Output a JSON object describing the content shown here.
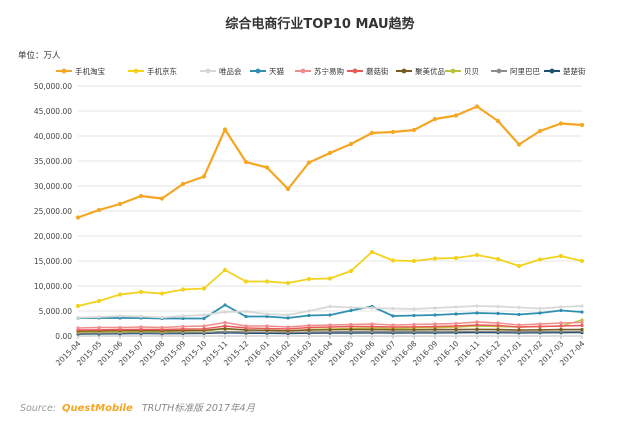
{
  "chart_data": {
    "type": "line",
    "title": "综合电商行业TOP10 MAU趋势",
    "unit_label": "单位：万人",
    "ylim": [
      0,
      50000
    ],
    "y_ticks": [
      "0.00",
      "5,000.00",
      "10,000.00",
      "15,000.00",
      "20,000.00",
      "25,000.00",
      "30,000.00",
      "35,000.00",
      "40,000.00",
      "45,000.00",
      "50,000.00"
    ],
    "categories": [
      "2015-04",
      "2015-05",
      "2015-06",
      "2015-07",
      "2015-08",
      "2015-09",
      "2015-10",
      "2015-11",
      "2015-12",
      "2016-01",
      "2016-02",
      "2016-03",
      "2016-04",
      "2016-05",
      "2016-06",
      "2016-07",
      "2016-08",
      "2016-09",
      "2016-10",
      "2016-11",
      "2016-12",
      "2017-01",
      "2017-02",
      "2017-03",
      "2017-04"
    ],
    "grid": "horizontal",
    "legend_position": "top",
    "series": [
      {
        "name": "手机淘宝",
        "color": "#f5a623",
        "width": 2.2,
        "values": [
          23700,
          25200,
          26400,
          28000,
          27500,
          30400,
          31900,
          41300,
          34800,
          33700,
          29400,
          34700,
          36600,
          38400,
          40600,
          40800,
          41200,
          43400,
          44100,
          45900,
          43000,
          38300,
          41000,
          42500,
          42200
        ]
      },
      {
        "name": "手机京东",
        "color": "#f2d21b",
        "width": 1.8,
        "values": [
          6000,
          7000,
          8300,
          8800,
          8500,
          9300,
          9500,
          13200,
          10900,
          10900,
          10600,
          11400,
          11500,
          13000,
          16800,
          15100,
          15000,
          15500,
          15600,
          16200,
          15400,
          14000,
          15300,
          16000,
          15000
        ]
      },
      {
        "name": "唯品会",
        "color": "#d8d8d8",
        "width": 1.8,
        "values": [
          3700,
          3800,
          4000,
          3900,
          3700,
          4000,
          4200,
          4800,
          4900,
          4400,
          4200,
          5000,
          5900,
          5700,
          5600,
          5500,
          5400,
          5600,
          5800,
          6000,
          5900,
          5700,
          5500,
          5800,
          6000
        ]
      },
      {
        "name": "天猫",
        "color": "#2e8fb0",
        "width": 1.8,
        "values": [
          3600,
          3600,
          3600,
          3600,
          3500,
          3500,
          3500,
          6200,
          3900,
          3900,
          3600,
          4100,
          4200,
          5100,
          5900,
          4000,
          4100,
          4200,
          4400,
          4600,
          4500,
          4300,
          4600,
          5100,
          4800
        ]
      },
      {
        "name": "苏宁易购",
        "color": "#f08c8c",
        "width": 1.4,
        "values": [
          1600,
          1700,
          1700,
          1800,
          1700,
          1900,
          2000,
          2700,
          2000,
          2000,
          1800,
          2100,
          2200,
          2300,
          2400,
          2200,
          2300,
          2400,
          2500,
          2800,
          2600,
          2200,
          2400,
          2600,
          2700
        ]
      },
      {
        "name": "蘑菇街",
        "color": "#e85a5a",
        "width": 1.4,
        "values": [
          1200,
          1250,
          1300,
          1350,
          1300,
          1400,
          1450,
          2000,
          1600,
          1500,
          1400,
          1700,
          1800,
          1900,
          1900,
          1800,
          1850,
          1900,
          2000,
          2200,
          2100,
          1800,
          1900,
          2000,
          2100
        ]
      },
      {
        "name": "聚美优品",
        "color": "#7a5a1e",
        "width": 1.4,
        "values": [
          1000,
          1050,
          1100,
          1100,
          1050,
          1100,
          1150,
          1500,
          1200,
          1150,
          1050,
          1200,
          1250,
          1300,
          1300,
          1250,
          1250,
          1300,
          1300,
          1350,
          1300,
          1200,
          1250,
          1300,
          1300
        ]
      },
      {
        "name": "贝贝",
        "color": "#b9c23a",
        "width": 1.4,
        "values": [
          800,
          850,
          900,
          950,
          900,
          1000,
          1050,
          1400,
          1200,
          1150,
          1050,
          1300,
          1400,
          1500,
          1600,
          1500,
          1600,
          1700,
          1800,
          2000,
          1900,
          1800,
          1900,
          2000,
          3200
        ]
      },
      {
        "name": "阿里巴巴",
        "color": "#8c8c8c",
        "width": 1.4,
        "values": [
          600,
          620,
          650,
          680,
          650,
          700,
          720,
          900,
          800,
          780,
          720,
          800,
          850,
          880,
          900,
          870,
          880,
          900,
          920,
          950,
          930,
          880,
          900,
          920,
          930
        ]
      },
      {
        "name": "楚楚街",
        "color": "#1f4f6e",
        "width": 1.4,
        "values": [
          400,
          420,
          450,
          470,
          460,
          500,
          520,
          650,
          560,
          540,
          500,
          560,
          580,
          600,
          620,
          600,
          610,
          630,
          650,
          680,
          660,
          620,
          640,
          660,
          670
        ]
      }
    ]
  },
  "source": {
    "label": "Source:",
    "brand": "QuestMobile",
    "rest": "TRUTH标准版 2017年4月"
  }
}
